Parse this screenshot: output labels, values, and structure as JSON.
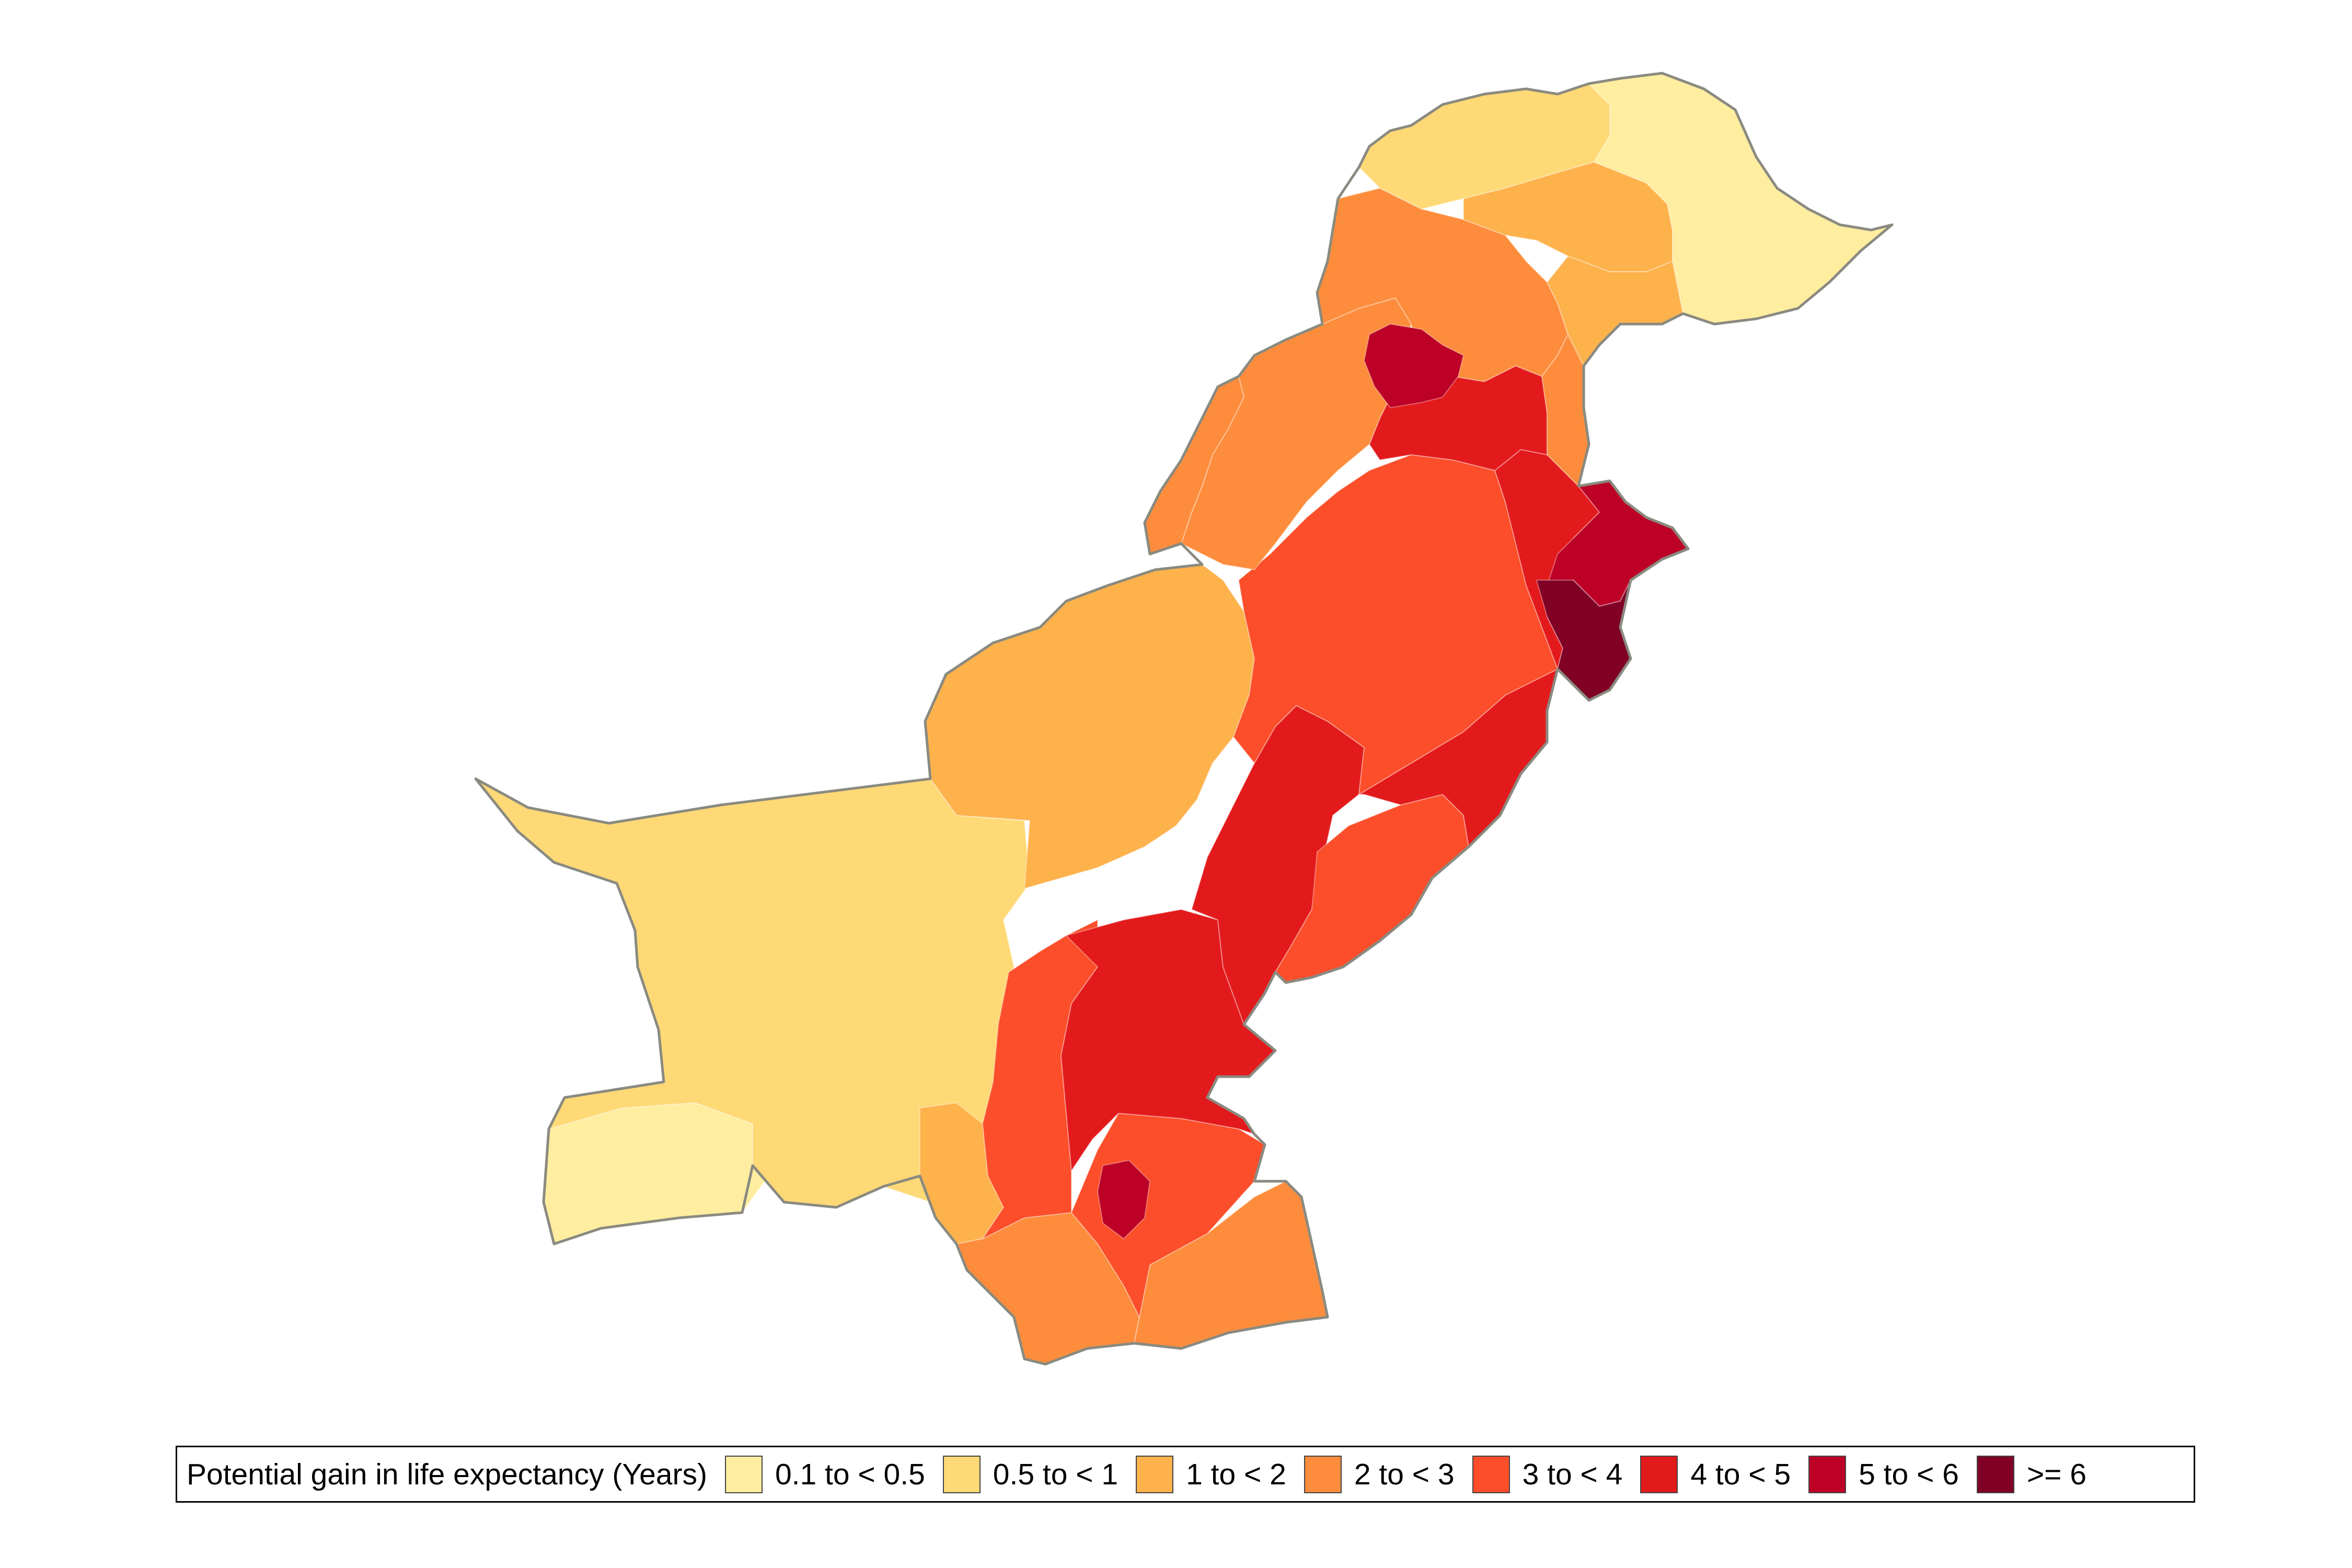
{
  "legend": {
    "title": "Potential gain in life expectancy (Years)",
    "items": [
      {
        "label": "0.1 to < 0.5",
        "color": "#FFEDA0"
      },
      {
        "label": "0.5 to < 1",
        "color": "#FED976"
      },
      {
        "label": "1 to < 2",
        "color": "#FEB24C"
      },
      {
        "label": "2 to < 3",
        "color": "#FD8D3C"
      },
      {
        "label": "3 to < 4",
        "color": "#FC4E2A"
      },
      {
        "label": "4 to < 5",
        "color": "#E31A1C"
      },
      {
        "label": "5 to < 6",
        "color": "#BD0026"
      },
      {
        "label": ">= 6",
        "color": "#800026"
      }
    ]
  },
  "colors": {
    "outline": "#8a8a80",
    "background": "#ffffff"
  }
}
